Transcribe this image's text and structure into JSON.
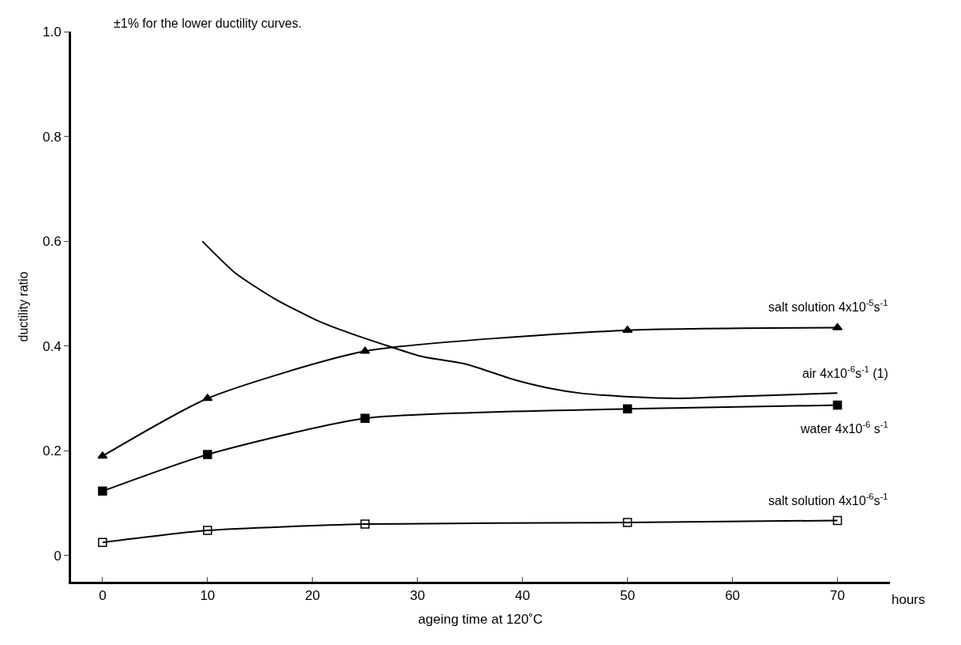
{
  "chart_data": {
    "type": "line",
    "xlabel": "ageing time at 120˚C",
    "ylabel": "ductility ratio",
    "annotations": [
      "±1% for the lower ductility curves.",
      "hours"
    ],
    "xlim": [
      -3,
      75
    ],
    "xticks": [
      0,
      10,
      20,
      30,
      40,
      50,
      60,
      70
    ],
    "ylim": [
      -0.05,
      1.0
    ],
    "yticks": [
      0,
      0.2,
      0.4,
      0.6,
      0.8,
      {
        "value": 1,
        "label": "1.0"
      }
    ],
    "line_style": "solid",
    "series": [
      {
        "name": "salt solution 4x10$^{-5}$s$^{-1}$",
        "color": "#000000",
        "marker": "triangle",
        "x": [
          0,
          10,
          25,
          50,
          70
        ],
        "values": [
          0.19,
          0.3,
          0.39,
          0.43,
          0.435
        ]
      },
      {
        "name": "air 4x10$^{-6}$s$^{-1}$ (1)",
        "color": "#000000",
        "marker": "none",
        "x": [
          9.5,
          12.6,
          16.4,
          20.3,
          22.8,
          27.2,
          30.4,
          34.7,
          39.3,
          42.4,
          45.5,
          50.2,
          54.8,
          61,
          70
        ],
        "values": [
          0.6,
          0.54,
          0.49,
          0.45,
          0.43,
          0.4,
          0.38,
          0.365,
          0.335,
          0.32,
          0.31,
          0.303,
          0.3,
          0.304,
          0.31
        ]
      },
      {
        "name": "water 4x10$^{-6}$ s$^{-1}$",
        "color": "#000000",
        "marker": "square",
        "x": [
          0,
          10,
          25,
          50,
          70
        ],
        "values": [
          0.123,
          0.193,
          0.262,
          0.28,
          0.287
        ]
      },
      {
        "name": "salt solution 4x10$^{-6}$s$^{-1}$",
        "color": "#000000",
        "marker": "square-open",
        "x": [
          0,
          10,
          25,
          50,
          70
        ],
        "values": [
          0.025,
          0.048,
          0.06,
          0.063,
          0.067
        ]
      }
    ]
  }
}
